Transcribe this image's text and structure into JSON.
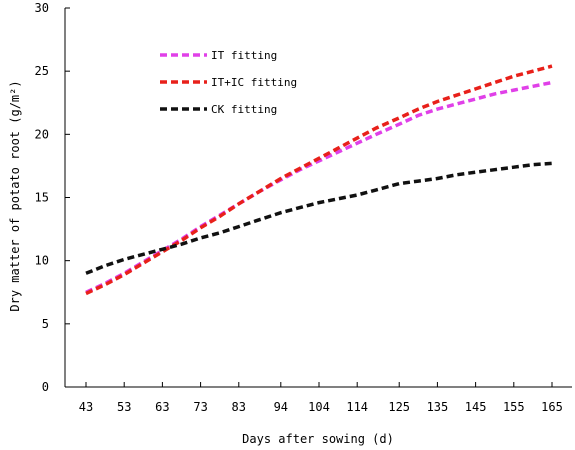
{
  "chart_data": {
    "type": "line",
    "xlabel": "Days after sowing (d)",
    "ylabel": "Dry matter of potato root (g/m²)",
    "categories": [
      "43",
      "53",
      "63",
      "73",
      "83",
      "94",
      "104",
      "114",
      "125",
      "135",
      "145",
      "155",
      "165"
    ],
    "ylim": [
      0,
      30
    ],
    "yticks": [
      0,
      5,
      10,
      15,
      20,
      25,
      30
    ],
    "grid": false,
    "legend_placement": "top-left",
    "series": [
      {
        "name": "IT fitting",
        "color": "#e040e8",
        "x": [
          43,
          48,
          53,
          58,
          63,
          68,
          73,
          78,
          83,
          88,
          94,
          99,
          104,
          109,
          114,
          119,
          125,
          130,
          135,
          140,
          145,
          150,
          155,
          160,
          165
        ],
        "values": [
          7.5,
          8.2,
          9.0,
          9.9,
          10.8,
          11.7,
          12.7,
          13.6,
          14.5,
          15.4,
          16.4,
          17.2,
          17.9,
          18.6,
          19.3,
          20.0,
          20.8,
          21.5,
          22.0,
          22.4,
          22.8,
          23.2,
          23.5,
          23.8,
          24.1
        ]
      },
      {
        "name": "IT+IC fitting",
        "color": "#e8201a",
        "x": [
          43,
          48,
          53,
          58,
          63,
          68,
          73,
          78,
          83,
          88,
          94,
          99,
          104,
          109,
          114,
          119,
          125,
          130,
          135,
          140,
          145,
          150,
          155,
          160,
          165
        ],
        "values": [
          7.4,
          8.1,
          8.9,
          9.8,
          10.7,
          11.6,
          12.6,
          13.5,
          14.5,
          15.4,
          16.5,
          17.3,
          18.1,
          18.9,
          19.7,
          20.5,
          21.3,
          22.0,
          22.6,
          23.1,
          23.6,
          24.1,
          24.6,
          25.0,
          25.4
        ]
      },
      {
        "name": "CK fitting",
        "color": "#111111",
        "x": [
          43,
          48,
          53,
          58,
          63,
          68,
          73,
          78,
          83,
          88,
          94,
          99,
          104,
          109,
          114,
          119,
          125,
          130,
          135,
          140,
          145,
          150,
          155,
          160,
          165
        ],
        "values": [
          9.0,
          9.6,
          10.1,
          10.5,
          10.9,
          11.3,
          11.8,
          12.2,
          12.7,
          13.2,
          13.8,
          14.2,
          14.6,
          14.9,
          15.2,
          15.6,
          16.1,
          16.3,
          16.5,
          16.8,
          17.0,
          17.2,
          17.4,
          17.6,
          17.7
        ]
      }
    ]
  }
}
